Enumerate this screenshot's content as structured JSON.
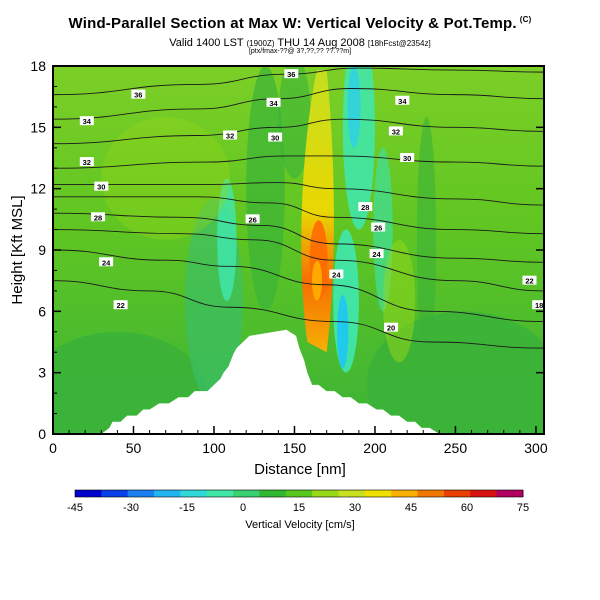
{
  "header": {
    "title": "Wind-Parallel Section at Max W: Vertical Velocity & Pot.Temp.",
    "title_mark": "(C)",
    "valid_prefix": "Valid 1400 LST",
    "valid_utc": "(1900Z)",
    "valid_date": "THU 14 Aug 2008",
    "valid_suffix": "[18hFcst@2354z]",
    "subline": "[ptx/fmax-??@ 3?,??,?? ??.??m]"
  },
  "chart_data": {
    "type": "heatmap",
    "title": "Wind-Parallel Section at Max W: Vertical Velocity & Pot.Temp.",
    "xlabel": "Distance [nm]",
    "ylabel": "Height [Kft MSL]",
    "xlim": [
      0,
      305
    ],
    "ylim": [
      0,
      18
    ],
    "x_ticks": [
      "0",
      "50",
      "100",
      "150",
      "200",
      "250",
      "300"
    ],
    "y_ticks": [
      "0",
      "3",
      "6",
      "9",
      "12",
      "15",
      "18"
    ],
    "grid": false,
    "colorbar": {
      "label": "Vertical Velocity [cm/s]",
      "min": -45,
      "max": 75,
      "step": 7.5,
      "tick_labels": [
        "-45",
        "-30",
        "-15",
        "0",
        "15",
        "30",
        "45",
        "60",
        "75"
      ],
      "colors": [
        "#0000cc",
        "#0a40e8",
        "#1a80f0",
        "#20b4f0",
        "#30d8d8",
        "#40e8a8",
        "#38d070",
        "#30b830",
        "#58c81e",
        "#98d818",
        "#c8e020",
        "#f0e000",
        "#f8b000",
        "#f07800",
        "#e84000",
        "#d81010",
        "#b00060"
      ]
    },
    "terrain": {
      "x": [
        0,
        30,
        35,
        37,
        42,
        46,
        52,
        56,
        60,
        66,
        72,
        78,
        84,
        88,
        96,
        100,
        104,
        106,
        109,
        112,
        114,
        118,
        122,
        145,
        151,
        153,
        156,
        158,
        161,
        165,
        170,
        175,
        180,
        185,
        190,
        195,
        201,
        205,
        210,
        215,
        220,
        225,
        229,
        234,
        240,
        305
      ],
      "y": [
        0,
        0,
        0.3,
        0.6,
        0.6,
        0.9,
        0.9,
        1.2,
        1.2,
        1.5,
        1.5,
        1.8,
        1.8,
        2.1,
        2.1,
        2.4,
        2.7,
        3.0,
        3.3,
        3.9,
        4.2,
        4.5,
        4.8,
        5.1,
        4.8,
        4.2,
        3.6,
        3.0,
        2.4,
        2.4,
        2.1,
        2.1,
        1.8,
        1.8,
        1.5,
        1.5,
        1.2,
        1.2,
        0.9,
        0.9,
        0.6,
        0.6,
        0.3,
        0.3,
        0,
        0
      ]
    },
    "contour_series": [
      {
        "name": "18",
        "labels": [
          [
            302,
            6.3
          ]
        ],
        "points": [
          [
            0,
            7.5
          ],
          [
            60,
            7.0
          ],
          [
            110,
            6.2
          ],
          [
            175,
            5.5
          ],
          [
            235,
            4.5
          ],
          [
            305,
            4.2
          ]
        ]
      },
      {
        "name": "20",
        "labels": [
          [
            210,
            5.2
          ]
        ],
        "points": [
          [
            0,
            9.0
          ],
          [
            70,
            8.5
          ],
          [
            110,
            8.2
          ],
          [
            170,
            7.3
          ],
          [
            235,
            6.0
          ],
          [
            305,
            5.5
          ]
        ]
      },
      {
        "name": "22",
        "labels": [
          [
            42,
            6.3
          ],
          [
            296,
            7.5
          ]
        ],
        "points": [
          [
            0,
            10.0
          ],
          [
            80,
            9.8
          ],
          [
            125,
            9.5
          ],
          [
            175,
            8.5
          ],
          [
            250,
            7.5
          ],
          [
            305,
            7.0
          ]
        ]
      },
      {
        "name": "24",
        "labels": [
          [
            33,
            8.4
          ],
          [
            176,
            7.8
          ],
          [
            201,
            8.8
          ]
        ],
        "points": [
          [
            0,
            10.8
          ],
          [
            80,
            10.6
          ],
          [
            130,
            10.2
          ],
          [
            175,
            9.3
          ],
          [
            250,
            8.6
          ],
          [
            305,
            8.4
          ]
        ]
      },
      {
        "name": "26",
        "labels": [
          [
            124,
            10.5
          ],
          [
            202,
            10.1
          ]
        ],
        "points": [
          [
            0,
            11.6
          ],
          [
            90,
            11.6
          ],
          [
            135,
            11.3
          ],
          [
            175,
            10.6
          ],
          [
            250,
            10.0
          ],
          [
            305,
            9.8
          ]
        ]
      },
      {
        "name": "28",
        "labels": [
          [
            28,
            10.6
          ],
          [
            194,
            11.1
          ]
        ],
        "points": [
          [
            0,
            12.2
          ],
          [
            95,
            12.2
          ],
          [
            140,
            12.3
          ],
          [
            175,
            12.0
          ],
          [
            250,
            11.5
          ],
          [
            305,
            11.2
          ]
        ]
      },
      {
        "name": "30",
        "labels": [
          [
            30,
            12.1
          ],
          [
            138,
            14.5
          ],
          [
            220,
            13.5
          ]
        ],
        "points": [
          [
            0,
            13.0
          ],
          [
            95,
            13.3
          ],
          [
            145,
            13.6
          ],
          [
            175,
            13.6
          ],
          [
            250,
            13.3
          ],
          [
            305,
            13.1
          ]
        ]
      },
      {
        "name": "32",
        "labels": [
          [
            21,
            13.3
          ],
          [
            110,
            14.6
          ],
          [
            213,
            14.8
          ]
        ],
        "points": [
          [
            0,
            14.2
          ],
          [
            90,
            14.6
          ],
          [
            140,
            15.0
          ],
          [
            180,
            15.4
          ],
          [
            250,
            15.0
          ],
          [
            305,
            14.8
          ]
        ]
      },
      {
        "name": "34",
        "labels": [
          [
            21,
            15.3
          ],
          [
            137,
            16.2
          ],
          [
            217,
            16.3
          ]
        ],
        "points": [
          [
            0,
            15.4
          ],
          [
            90,
            15.9
          ],
          [
            140,
            16.4
          ],
          [
            185,
            16.9
          ],
          [
            250,
            16.6
          ],
          [
            305,
            16.4
          ]
        ]
      },
      {
        "name": "36",
        "labels": [
          [
            53,
            16.6
          ],
          [
            148,
            17.6
          ]
        ],
        "points": [
          [
            0,
            16.6
          ],
          [
            90,
            17.1
          ],
          [
            145,
            17.6
          ],
          [
            190,
            17.9
          ],
          [
            250,
            17.8
          ],
          [
            305,
            17.7
          ]
        ]
      }
    ]
  }
}
